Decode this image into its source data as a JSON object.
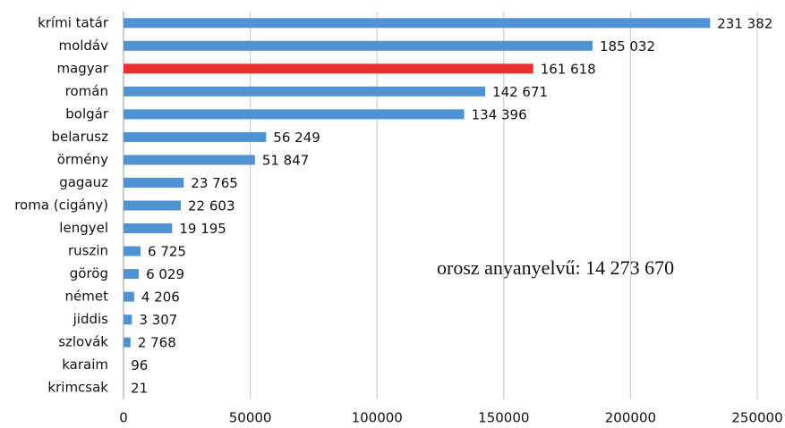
{
  "chart_data": {
    "type": "hbar",
    "categories": [
      "krími tatár",
      "moldáv",
      "magyar",
      "román",
      "bolgár",
      "belarusz",
      "örmény",
      "gagauz",
      "roma (cigány)",
      "lengyel",
      "ruszin",
      "görög",
      "német",
      "jiddis",
      "szlovák",
      "karaim",
      "krimcsak"
    ],
    "values": [
      231382,
      185032,
      161618,
      142671,
      134396,
      56249,
      51847,
      23765,
      22603,
      19195,
      6725,
      6029,
      4206,
      3307,
      2768,
      96,
      21
    ],
    "value_labels": [
      "231 382",
      "185 032",
      "161 618",
      "142 671",
      "134 396",
      "56 249",
      "51 847",
      "23 765",
      "22 603",
      "19 195",
      "6 725",
      "6 029",
      "4 206",
      "3 307",
      "2 768",
      "96",
      "21"
    ],
    "colors": [
      "#4f93d2",
      "#4f93d2",
      "#e8312f",
      "#4f93d2",
      "#4f93d2",
      "#4f93d2",
      "#4f93d2",
      "#4f93d2",
      "#4f93d2",
      "#4f93d2",
      "#4f93d2",
      "#4f93d2",
      "#4f93d2",
      "#4f93d2",
      "#4f93d2",
      "#4f93d2",
      "#4f93d2"
    ],
    "xlim": [
      0,
      250000
    ],
    "xticks": [
      0,
      50000,
      100000,
      150000,
      200000,
      250000
    ],
    "grid": true,
    "annotation": "orosz anyanyelvű: 14 273 670"
  }
}
